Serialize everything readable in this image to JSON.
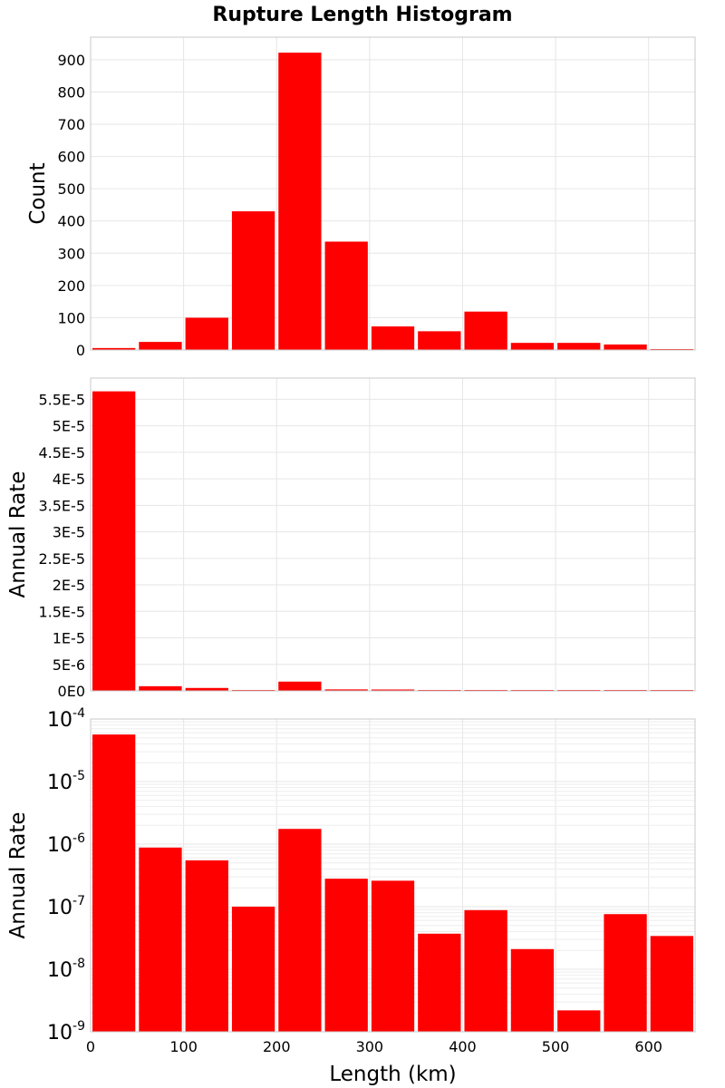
{
  "title": "Rupture Length Histogram",
  "colors": {
    "bar": "#ff0000",
    "grid": "#e6e6e6",
    "frame": "#c8c8c8",
    "background": "#ffffff"
  },
  "chart_data": [
    {
      "type": "bar",
      "ylabel": "Count",
      "yscale": "linear",
      "ylim": [
        0,
        970
      ],
      "yticks": [
        0,
        100,
        200,
        300,
        400,
        500,
        600,
        700,
        800,
        900
      ],
      "ytick_labels": [
        "0",
        "100",
        "200",
        "300",
        "400",
        "500",
        "600",
        "700",
        "800",
        "900"
      ],
      "bin_width": 50,
      "x": [
        25,
        75,
        125,
        175,
        225,
        275,
        325,
        375,
        425,
        475,
        525,
        575,
        625
      ],
      "values": [
        6,
        25,
        100,
        430,
        922,
        336,
        73,
        58,
        119,
        22,
        22,
        17,
        2
      ],
      "grid": true
    },
    {
      "type": "bar",
      "ylabel": "Annual Rate",
      "yscale": "linear",
      "ylim": [
        0,
        5.9e-05
      ],
      "yticks": [
        0,
        5e-06,
        1e-05,
        1.5e-05,
        2e-05,
        2.5e-05,
        3e-05,
        3.5e-05,
        4e-05,
        4.5e-05,
        5e-05,
        5.5e-05
      ],
      "ytick_labels": [
        "0E0",
        "5E-6",
        "1E-5",
        "1.5E-5",
        "2E-5",
        "2.5E-5",
        "3E-5",
        "3.5E-5",
        "4E-5",
        "4.5E-5",
        "5E-5",
        "5.5E-5"
      ],
      "bin_width": 50,
      "x": [
        25,
        75,
        125,
        175,
        225,
        275,
        325,
        375,
        425,
        475,
        525,
        575,
        625
      ],
      "values": [
        5.65e-05,
        8.8e-07,
        5.5e-07,
        1e-07,
        1.75e-06,
        2.8e-07,
        2.6e-07,
        3.7e-08,
        8.8e-08,
        2.1e-08,
        2.2e-09,
        7.6e-08,
        3.4e-08
      ],
      "grid": true
    },
    {
      "type": "bar",
      "xlabel": "Length (km)",
      "ylabel": "Annual Rate",
      "yscale": "log",
      "ylim": [
        1e-09,
        0.0001
      ],
      "yticks": [
        1e-09,
        1e-08,
        1e-07,
        1e-06,
        1e-05,
        0.0001
      ],
      "ytick_labels": [
        {
          "base": "10",
          "exp": "-9"
        },
        {
          "base": "10",
          "exp": "-8"
        },
        {
          "base": "10",
          "exp": "-7"
        },
        {
          "base": "10",
          "exp": "-6"
        },
        {
          "base": "10",
          "exp": "-5"
        },
        {
          "base": "10",
          "exp": "-4"
        }
      ],
      "bin_width": 50,
      "x": [
        25,
        75,
        125,
        175,
        225,
        275,
        325,
        375,
        425,
        475,
        525,
        575,
        625
      ],
      "values": [
        5.65e-05,
        8.8e-07,
        5.5e-07,
        1e-07,
        1.75e-06,
        2.8e-07,
        2.6e-07,
        3.7e-08,
        8.8e-08,
        2.1e-08,
        2.2e-09,
        7.6e-08,
        3.4e-08
      ],
      "grid": true
    }
  ],
  "x_axis": {
    "xlim": [
      0,
      650
    ],
    "xticks": [
      0,
      100,
      200,
      300,
      400,
      500,
      600
    ],
    "xtick_labels": [
      "0",
      "100",
      "200",
      "300",
      "400",
      "500",
      "600"
    ],
    "xlabel": "Length (km)"
  }
}
